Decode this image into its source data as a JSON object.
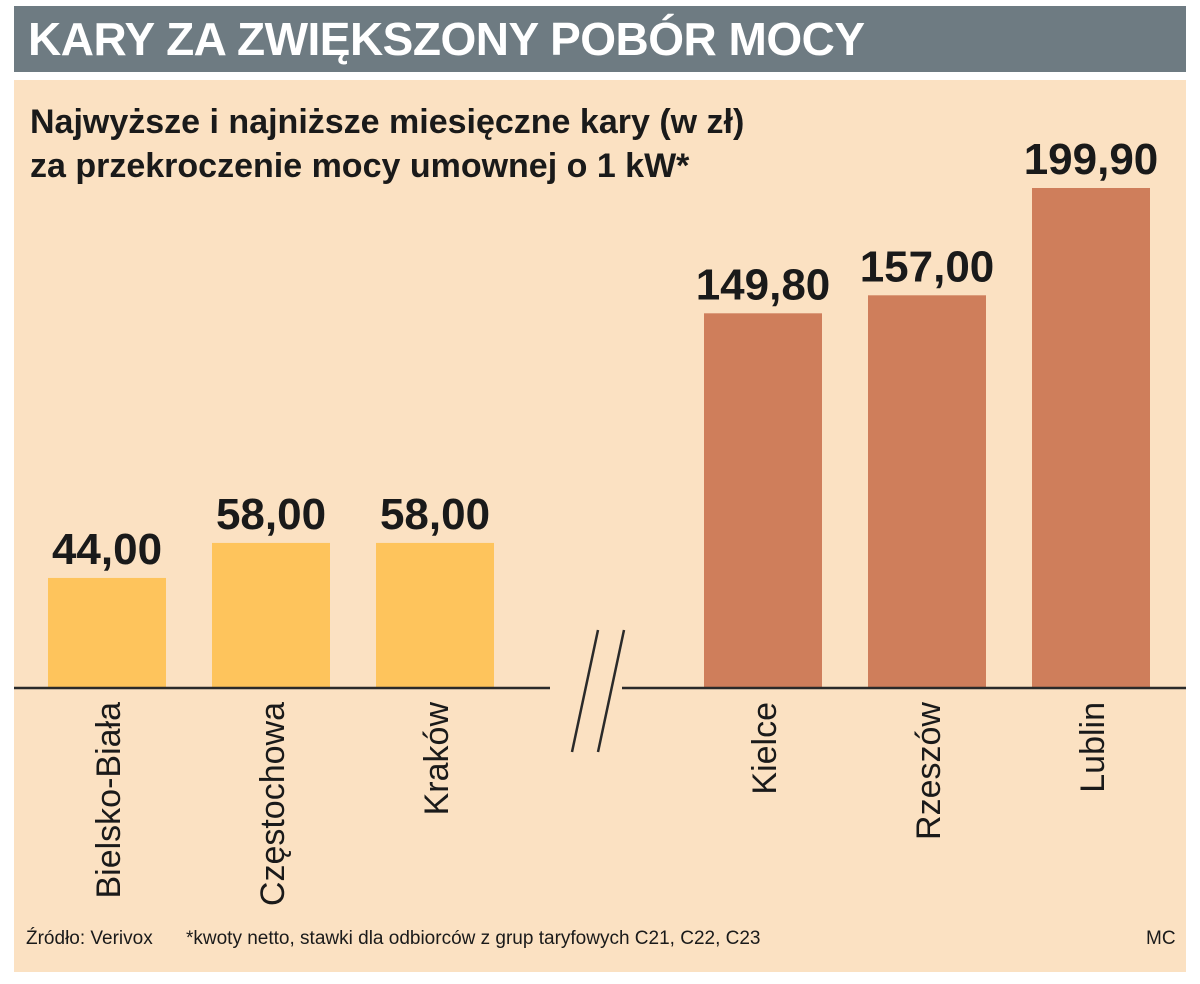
{
  "header": {
    "title": "KARY ZA ZWIĘKSZONY POBÓR MOCY"
  },
  "subtitle": {
    "line1": "Najwyższe i najniższe miesięczne kary (w zł)",
    "line2": "za przekroczenie mocy umownej o 1 kW*"
  },
  "footer": {
    "source": "Źródło: Verivox",
    "note": "*kwoty netto, stawki dla odbiorców z grup taryfowych C21, C22, C23",
    "author": "MC"
  },
  "colors": {
    "banner": "#6e7b82",
    "panel": "#fbe1c2",
    "low_bar": "#fec45c",
    "high_bar": "#cf7e5b"
  },
  "chart_data": {
    "type": "bar",
    "categories": [
      "Bielsko-Biała",
      "Częstochowa",
      "Kraków",
      "Kielce",
      "Rzeszów",
      "Lublin"
    ],
    "values": [
      44.0,
      58.0,
      58.0,
      149.8,
      157.0,
      199.9
    ],
    "value_labels": [
      "44,00",
      "58,00",
      "58,00",
      "149,80",
      "157,00",
      "199,90"
    ],
    "groups": [
      "lowest",
      "lowest",
      "lowest",
      "highest",
      "highest",
      "highest"
    ],
    "axis_break_between": [
      2,
      3
    ],
    "ylim": [
      0,
      199.9
    ],
    "grid": false,
    "legend": "none"
  }
}
